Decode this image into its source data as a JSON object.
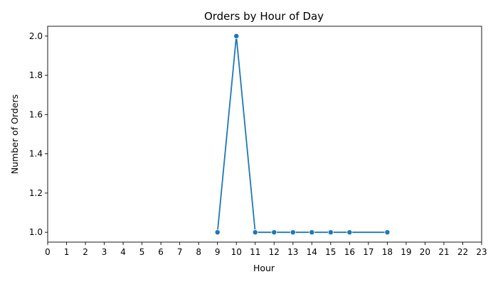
{
  "chart_data": {
    "type": "line",
    "title": "Orders by Hour of Day",
    "xlabel": "Hour",
    "ylabel": "Number of Orders",
    "xlim": [
      0,
      23
    ],
    "ylim": [
      0.95,
      2.05
    ],
    "xticks": [
      "0",
      "1",
      "2",
      "3",
      "4",
      "5",
      "6",
      "7",
      "8",
      "9",
      "10",
      "11",
      "12",
      "13",
      "14",
      "15",
      "16",
      "17",
      "18",
      "19",
      "20",
      "21",
      "22",
      "23"
    ],
    "yticks": [
      "1.0",
      "1.2",
      "1.4",
      "1.6",
      "1.8",
      "2.0"
    ],
    "grid": false,
    "series": [
      {
        "color": "#1f77b4",
        "marker": "circle",
        "x": [
          9,
          10,
          11,
          12,
          13,
          14,
          15,
          16,
          18
        ],
        "y": [
          1,
          2,
          1,
          1,
          1,
          1,
          1,
          1,
          1
        ]
      }
    ]
  }
}
